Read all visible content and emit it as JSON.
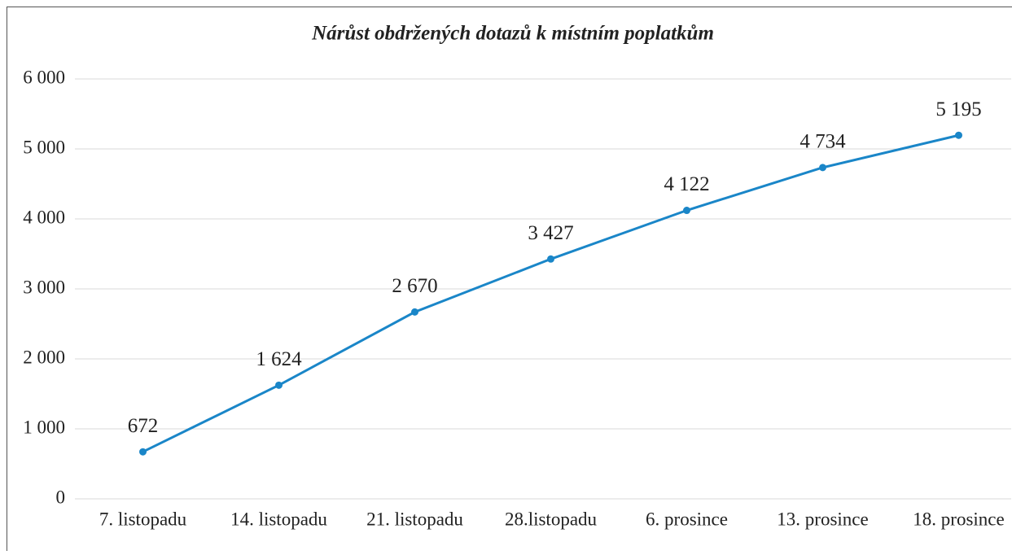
{
  "chart_data": {
    "type": "line",
    "title": "Nárůst obdržených dotazů k místním poplatkům",
    "categories": [
      "7. listopadu",
      "14. listopadu",
      "21. listopadu",
      "28.listopadu",
      "6. prosince",
      "13. prosince",
      "18. prosince"
    ],
    "series": [
      {
        "color": "#1a86c8",
        "values": [
          672,
          1624,
          2670,
          3427,
          4122,
          4734,
          5195
        ],
        "value_labels": [
          "672",
          "1 624",
          "2 670",
          "3 427",
          "4 122",
          "4 734",
          "5 195"
        ]
      }
    ],
    "ylim": [
      0,
      6000
    ],
    "yticks": [
      0,
      {
        "value": 1000,
        "label": "1 000"
      },
      {
        "value": 2000,
        "label": "2 000"
      },
      {
        "value": 3000,
        "label": "3 000"
      },
      {
        "value": 4000,
        "label": "4 000"
      },
      {
        "value": 5000,
        "label": "5 000"
      },
      {
        "value": 6000,
        "label": "6 000"
      }
    ],
    "grid": true
  }
}
